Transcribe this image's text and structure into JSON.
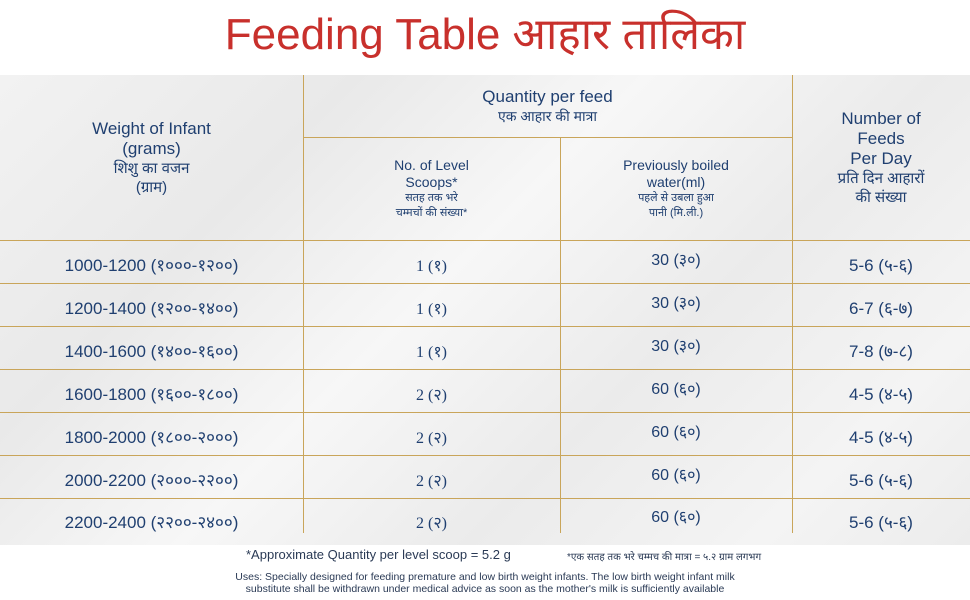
{
  "title": {
    "en": "Feeding Table",
    "hi": "आहार तालिका"
  },
  "headers": {
    "weight": {
      "en1": "Weight of Infant",
      "en2": "(grams)",
      "hi1": "शिशु का वजन",
      "hi2": "(ग्राम)"
    },
    "quantity": {
      "en": "Quantity per feed",
      "hi": "एक आहार की मात्रा"
    },
    "scoops": {
      "en1": "No. of Level",
      "en2": "Scoops*",
      "hi1": "सतह तक भरे",
      "hi2": "चम्मचों की संख्या*"
    },
    "water": {
      "en1": "Previously boiled",
      "en2": "water(ml)",
      "hi1": "पहले से उबला हुआ",
      "hi2": "पानी (मि.ली.)"
    },
    "feeds": {
      "en1": "Number of",
      "en2": "Feeds",
      "en3": "Per Day",
      "hi1": "प्रति दिन आहारों",
      "hi2": "की संख्या"
    }
  },
  "rows": [
    {
      "weight": "1000-1200 (१०००-१२००)",
      "scoops": "1 (१)",
      "water": "30 (३०)",
      "feeds": "5-6 (५-६)"
    },
    {
      "weight": "1200-1400 (१२००-१४००)",
      "scoops": "1 (१)",
      "water": "30 (३०)",
      "feeds": "6-7 (६-७)"
    },
    {
      "weight": "1400-1600 (१४००-१६००)",
      "scoops": "1 (१)",
      "water": "30 (३०)",
      "feeds": "7-8 (७-८)"
    },
    {
      "weight": "1600-1800 (१६००-१८००)",
      "scoops": "2 (२)",
      "water": "60 (६०)",
      "feeds": "4-5 (४-५)"
    },
    {
      "weight": "1800-2000 (१८००-२०००)",
      "scoops": "2 (२)",
      "water": "60 (६०)",
      "feeds": "4-5 (४-५)"
    },
    {
      "weight": "2000-2200 (२०००-२२००)",
      "scoops": "2 (२)",
      "water": "60 (६०)",
      "feeds": "5-6 (५-६)"
    },
    {
      "weight": "2200-2400 (२२००-२४००)",
      "scoops": "2 (२)",
      "water": "60 (६०)",
      "feeds": "5-6 (५-६)"
    }
  ],
  "footnotes": {
    "scoop_en": "*Approximate Quantity per level scoop = 5.2 g",
    "scoop_hi": "*एक सतह तक भरे चम्मच की मात्रा = ५.२ ग्राम लगभग",
    "uses1": "Uses: Specially designed for feeding premature and low birth weight infants. The low birth weight infant milk",
    "uses2": "substitute shall be withdrawn under medical advice as soon as the mother's milk is sufficiently available"
  },
  "colors": {
    "title": "#c8302c",
    "text": "#1f3f70",
    "lines": "#c9a55a"
  }
}
